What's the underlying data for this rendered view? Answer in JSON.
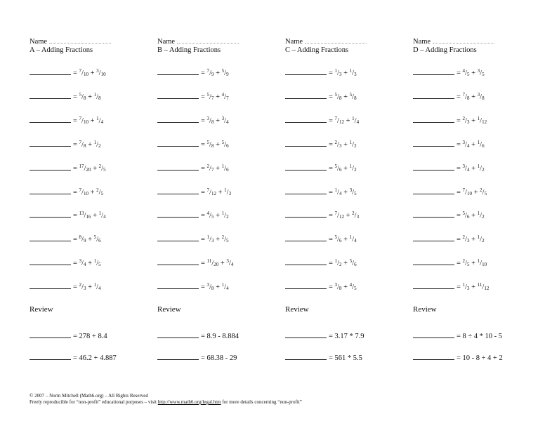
{
  "name_label": "Name",
  "review_label": "Review",
  "sections": [
    {
      "title": "A – Adding Fractions",
      "problems": [
        [
          [
            "7",
            "10"
          ],
          [
            "3",
            "10"
          ]
        ],
        [
          [
            "5",
            "8"
          ],
          [
            "1",
            "8"
          ]
        ],
        [
          [
            "7",
            "10"
          ],
          [
            "1",
            "4"
          ]
        ],
        [
          [
            "7",
            "8"
          ],
          [
            "1",
            "2"
          ]
        ],
        [
          [
            "17",
            "20"
          ],
          [
            "2",
            "5"
          ]
        ],
        [
          [
            "7",
            "10"
          ],
          [
            "2",
            "5"
          ]
        ],
        [
          [
            "13",
            "16"
          ],
          [
            "1",
            "4"
          ]
        ],
        [
          [
            "8",
            "9"
          ],
          [
            "5",
            "6"
          ]
        ],
        [
          [
            "3",
            "4"
          ],
          [
            "1",
            "5"
          ]
        ],
        [
          [
            "2",
            "3"
          ],
          [
            "1",
            "4"
          ]
        ]
      ],
      "review": [
        "278 + 8.4",
        "46.2 + 4.887"
      ]
    },
    {
      "title": "B – Adding Fractions",
      "problems": [
        [
          [
            "7",
            "9"
          ],
          [
            "5",
            "9"
          ]
        ],
        [
          [
            "5",
            "7"
          ],
          [
            "4",
            "7"
          ]
        ],
        [
          [
            "3",
            "8"
          ],
          [
            "3",
            "4"
          ]
        ],
        [
          [
            "5",
            "8"
          ],
          [
            "5",
            "6"
          ]
        ],
        [
          [
            "2",
            "7"
          ],
          [
            "1",
            "6"
          ]
        ],
        [
          [
            "7",
            "12"
          ],
          [
            "1",
            "3"
          ]
        ],
        [
          [
            "4",
            "5"
          ],
          [
            "1",
            "2"
          ]
        ],
        [
          [
            "1",
            "3"
          ],
          [
            "2",
            "5"
          ]
        ],
        [
          [
            "11",
            "20"
          ],
          [
            "3",
            "4"
          ]
        ],
        [
          [
            "3",
            "8"
          ],
          [
            "1",
            "4"
          ]
        ]
      ],
      "review": [
        "8.9 - 8.884",
        "68.38 - 29"
      ]
    },
    {
      "title": "C – Adding Fractions",
      "problems": [
        [
          [
            "1",
            "3"
          ],
          [
            "1",
            "3"
          ]
        ],
        [
          [
            "5",
            "8"
          ],
          [
            "5",
            "8"
          ]
        ],
        [
          [
            "7",
            "12"
          ],
          [
            "1",
            "4"
          ]
        ],
        [
          [
            "2",
            "3"
          ],
          [
            "1",
            "2"
          ]
        ],
        [
          [
            "5",
            "6"
          ],
          [
            "1",
            "2"
          ]
        ],
        [
          [
            "1",
            "4"
          ],
          [
            "3",
            "5"
          ]
        ],
        [
          [
            "7",
            "12"
          ],
          [
            "2",
            "3"
          ]
        ],
        [
          [
            "5",
            "6"
          ],
          [
            "1",
            "4"
          ]
        ],
        [
          [
            "1",
            "2"
          ],
          [
            "5",
            "6"
          ]
        ],
        [
          [
            "3",
            "8"
          ],
          [
            "4",
            "5"
          ]
        ]
      ],
      "review": [
        "3.17 * 7.9",
        "561 * 5.5"
      ]
    },
    {
      "title": "D – Adding Fractions",
      "problems": [
        [
          [
            "4",
            "5"
          ],
          [
            "3",
            "5"
          ]
        ],
        [
          [
            "7",
            "8"
          ],
          [
            "3",
            "8"
          ]
        ],
        [
          [
            "2",
            "3"
          ],
          [
            "1",
            "12"
          ]
        ],
        [
          [
            "3",
            "4"
          ],
          [
            "1",
            "6"
          ]
        ],
        [
          [
            "3",
            "4"
          ],
          [
            "1",
            "2"
          ]
        ],
        [
          [
            "7",
            "10"
          ],
          [
            "2",
            "5"
          ]
        ],
        [
          [
            "5",
            "6"
          ],
          [
            "1",
            "2"
          ]
        ],
        [
          [
            "2",
            "3"
          ],
          [
            "1",
            "2"
          ]
        ],
        [
          [
            "2",
            "5"
          ],
          [
            "1",
            "10"
          ]
        ],
        [
          [
            "1",
            "3"
          ],
          [
            "11",
            "12"
          ]
        ]
      ],
      "review": [
        "8 ÷ 4 * 10 - 5",
        "10 - 8 ÷ 4 + 2"
      ]
    }
  ],
  "footer": {
    "copyright": "© 2007 – Norm Mitchell (Math6.org) – All Rights Reserved",
    "line2_pre": "Freely reproducible for “non-profit” educational purposes – visit ",
    "link": "http://www.math6.org/legal.htm",
    "line2_post": " for more details concerning “non-profit”"
  }
}
